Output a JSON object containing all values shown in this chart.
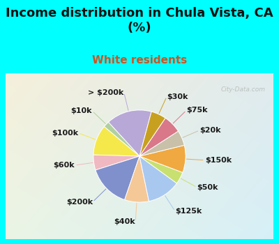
{
  "title": "Income distribution in Chula Vista, CA\n(%)",
  "subtitle": "White residents",
  "bg_color": "#00FFFF",
  "watermark": "City-Data.com",
  "labels": [
    "> $200k",
    "$10k",
    "$100k",
    "$60k",
    "$200k",
    "$40k",
    "$125k",
    "$50k",
    "$150k",
    "$20k",
    "$75k",
    "$30k"
  ],
  "values": [
    15,
    2,
    10,
    5,
    14,
    8,
    11,
    4,
    9,
    5,
    6,
    5
  ],
  "colors": [
    "#b8a8d8",
    "#b0d0a0",
    "#f5e84a",
    "#f0b8c0",
    "#8090cc",
    "#f5c898",
    "#a8c8f0",
    "#c8e070",
    "#f0a840",
    "#c8c0a8",
    "#d87888",
    "#c8a020"
  ],
  "label_colors": [
    "#b8a8d8",
    "#b0d0a0",
    "#f5e84a",
    "#f0b8c0",
    "#8090cc",
    "#f5c898",
    "#a8c8f0",
    "#c8e070",
    "#f0a840",
    "#c8c0a8",
    "#d87888",
    "#c8a020"
  ],
  "startangle": 75,
  "title_fontsize": 13,
  "subtitle_fontsize": 11,
  "label_fontsize": 8
}
